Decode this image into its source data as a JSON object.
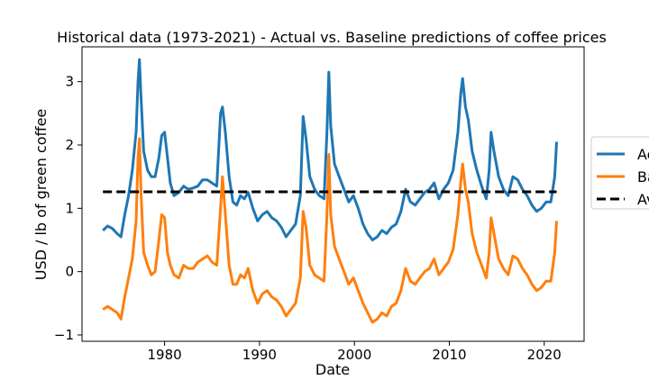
{
  "chart_data": {
    "type": "line",
    "title": "Historical data (1973-2021) - Actual vs. Baseline predictions of coffee prices",
    "xlabel": "Date",
    "ylabel": "USD / lb of green coffee",
    "xlim": [
      1971.3,
      2024.2
    ],
    "ylim": [
      -1.1,
      3.55
    ],
    "xticks": [
      1980,
      1990,
      2000,
      2010,
      2020
    ],
    "yticks": [
      -1,
      0,
      1,
      2,
      3
    ],
    "legend_position": "center-right (outside axes, clipped)",
    "grid": false,
    "series": [
      {
        "name": "Ac",
        "color": "#1f77b4",
        "points": [
          [
            1973.5,
            0.65
          ],
          [
            1974.0,
            0.72
          ],
          [
            1974.5,
            0.68
          ],
          [
            1975.0,
            0.6
          ],
          [
            1975.4,
            0.55
          ],
          [
            1975.8,
            0.9
          ],
          [
            1976.2,
            1.2
          ],
          [
            1976.6,
            1.6
          ],
          [
            1977.0,
            2.2
          ],
          [
            1977.2,
            3.0
          ],
          [
            1977.35,
            3.35
          ],
          [
            1977.5,
            2.8
          ],
          [
            1977.8,
            1.9
          ],
          [
            1978.2,
            1.6
          ],
          [
            1978.6,
            1.5
          ],
          [
            1979.0,
            1.5
          ],
          [
            1979.4,
            1.8
          ],
          [
            1979.7,
            2.15
          ],
          [
            1980.0,
            2.2
          ],
          [
            1980.3,
            1.8
          ],
          [
            1980.6,
            1.4
          ],
          [
            1981.0,
            1.2
          ],
          [
            1981.5,
            1.25
          ],
          [
            1982.0,
            1.35
          ],
          [
            1982.5,
            1.3
          ],
          [
            1983.0,
            1.32
          ],
          [
            1983.5,
            1.35
          ],
          [
            1984.0,
            1.45
          ],
          [
            1984.5,
            1.45
          ],
          [
            1985.0,
            1.4
          ],
          [
            1985.5,
            1.35
          ],
          [
            1985.9,
            2.5
          ],
          [
            1986.1,
            2.6
          ],
          [
            1986.4,
            2.2
          ],
          [
            1986.8,
            1.5
          ],
          [
            1987.2,
            1.1
          ],
          [
            1987.6,
            1.05
          ],
          [
            1988.0,
            1.2
          ],
          [
            1988.4,
            1.15
          ],
          [
            1988.8,
            1.25
          ],
          [
            1989.3,
            1.0
          ],
          [
            1989.8,
            0.8
          ],
          [
            1990.3,
            0.9
          ],
          [
            1990.8,
            0.95
          ],
          [
            1991.3,
            0.85
          ],
          [
            1991.8,
            0.8
          ],
          [
            1992.3,
            0.7
          ],
          [
            1992.8,
            0.55
          ],
          [
            1993.3,
            0.65
          ],
          [
            1993.8,
            0.75
          ],
          [
            1994.3,
            1.2
          ],
          [
            1994.6,
            2.45
          ],
          [
            1994.9,
            2.1
          ],
          [
            1995.3,
            1.5
          ],
          [
            1995.8,
            1.3
          ],
          [
            1996.3,
            1.2
          ],
          [
            1996.8,
            1.15
          ],
          [
            1997.1,
            2.2
          ],
          [
            1997.3,
            3.15
          ],
          [
            1997.5,
            2.3
          ],
          [
            1997.9,
            1.7
          ],
          [
            1998.4,
            1.5
          ],
          [
            1998.9,
            1.3
          ],
          [
            1999.4,
            1.1
          ],
          [
            1999.9,
            1.2
          ],
          [
            2000.4,
            1.0
          ],
          [
            2000.9,
            0.75
          ],
          [
            2001.4,
            0.6
          ],
          [
            2001.9,
            0.5
          ],
          [
            2002.4,
            0.55
          ],
          [
            2002.9,
            0.65
          ],
          [
            2003.4,
            0.6
          ],
          [
            2003.9,
            0.7
          ],
          [
            2004.4,
            0.75
          ],
          [
            2004.9,
            0.95
          ],
          [
            2005.4,
            1.3
          ],
          [
            2005.9,
            1.1
          ],
          [
            2006.4,
            1.05
          ],
          [
            2006.9,
            1.15
          ],
          [
            2007.4,
            1.25
          ],
          [
            2007.9,
            1.3
          ],
          [
            2008.4,
            1.4
          ],
          [
            2008.9,
            1.15
          ],
          [
            2009.4,
            1.3
          ],
          [
            2009.9,
            1.4
          ],
          [
            2010.4,
            1.6
          ],
          [
            2010.9,
            2.2
          ],
          [
            2011.2,
            2.8
          ],
          [
            2011.4,
            3.05
          ],
          [
            2011.7,
            2.6
          ],
          [
            2012.0,
            2.4
          ],
          [
            2012.4,
            1.9
          ],
          [
            2012.9,
            1.6
          ],
          [
            2013.4,
            1.35
          ],
          [
            2013.9,
            1.15
          ],
          [
            2014.2,
            1.6
          ],
          [
            2014.4,
            2.2
          ],
          [
            2014.7,
            1.9
          ],
          [
            2015.2,
            1.5
          ],
          [
            2015.7,
            1.3
          ],
          [
            2016.2,
            1.2
          ],
          [
            2016.7,
            1.5
          ],
          [
            2017.2,
            1.45
          ],
          [
            2017.7,
            1.3
          ],
          [
            2018.2,
            1.2
          ],
          [
            2018.7,
            1.05
          ],
          [
            2019.2,
            0.95
          ],
          [
            2019.7,
            1.0
          ],
          [
            2020.2,
            1.1
          ],
          [
            2020.7,
            1.1
          ],
          [
            2021.1,
            1.5
          ],
          [
            2021.3,
            2.05
          ]
        ]
      },
      {
        "name": "Ba",
        "color": "#ff7f0e",
        "points": [
          [
            1973.5,
            -0.6
          ],
          [
            1974.0,
            -0.55
          ],
          [
            1974.5,
            -0.6
          ],
          [
            1975.0,
            -0.65
          ],
          [
            1975.4,
            -0.75
          ],
          [
            1975.8,
            -0.4
          ],
          [
            1976.2,
            -0.1
          ],
          [
            1976.6,
            0.2
          ],
          [
            1977.0,
            0.8
          ],
          [
            1977.2,
            1.8
          ],
          [
            1977.35,
            2.1
          ],
          [
            1977.5,
            1.3
          ],
          [
            1977.8,
            0.3
          ],
          [
            1978.2,
            0.1
          ],
          [
            1978.6,
            -0.05
          ],
          [
            1979.0,
            0.0
          ],
          [
            1979.4,
            0.5
          ],
          [
            1979.7,
            0.9
          ],
          [
            1980.0,
            0.85
          ],
          [
            1980.3,
            0.3
          ],
          [
            1980.6,
            0.1
          ],
          [
            1981.0,
            -0.05
          ],
          [
            1981.5,
            -0.1
          ],
          [
            1982.0,
            0.1
          ],
          [
            1982.5,
            0.05
          ],
          [
            1983.0,
            0.05
          ],
          [
            1983.5,
            0.15
          ],
          [
            1984.0,
            0.2
          ],
          [
            1984.5,
            0.25
          ],
          [
            1985.0,
            0.15
          ],
          [
            1985.5,
            0.1
          ],
          [
            1985.9,
            1.0
          ],
          [
            1986.1,
            1.5
          ],
          [
            1986.4,
            0.9
          ],
          [
            1986.8,
            0.1
          ],
          [
            1987.2,
            -0.2
          ],
          [
            1987.6,
            -0.2
          ],
          [
            1988.0,
            -0.05
          ],
          [
            1988.4,
            -0.1
          ],
          [
            1988.8,
            0.05
          ],
          [
            1989.3,
            -0.3
          ],
          [
            1989.8,
            -0.5
          ],
          [
            1990.3,
            -0.35
          ],
          [
            1990.8,
            -0.3
          ],
          [
            1991.3,
            -0.4
          ],
          [
            1991.8,
            -0.45
          ],
          [
            1992.3,
            -0.55
          ],
          [
            1992.8,
            -0.7
          ],
          [
            1993.3,
            -0.6
          ],
          [
            1993.8,
            -0.5
          ],
          [
            1994.3,
            -0.1
          ],
          [
            1994.6,
            0.95
          ],
          [
            1994.9,
            0.7
          ],
          [
            1995.3,
            0.1
          ],
          [
            1995.8,
            -0.05
          ],
          [
            1996.3,
            -0.1
          ],
          [
            1996.8,
            -0.15
          ],
          [
            1997.1,
            0.9
          ],
          [
            1997.3,
            1.85
          ],
          [
            1997.5,
            0.9
          ],
          [
            1997.9,
            0.4
          ],
          [
            1998.4,
            0.2
          ],
          [
            1998.9,
            0.0
          ],
          [
            1999.4,
            -0.2
          ],
          [
            1999.9,
            -0.1
          ],
          [
            2000.4,
            -0.3
          ],
          [
            2000.9,
            -0.5
          ],
          [
            2001.4,
            -0.65
          ],
          [
            2001.9,
            -0.8
          ],
          [
            2002.4,
            -0.75
          ],
          [
            2002.9,
            -0.65
          ],
          [
            2003.4,
            -0.7
          ],
          [
            2003.9,
            -0.55
          ],
          [
            2004.4,
            -0.5
          ],
          [
            2004.9,
            -0.3
          ],
          [
            2005.4,
            0.05
          ],
          [
            2005.9,
            -0.15
          ],
          [
            2006.4,
            -0.2
          ],
          [
            2006.9,
            -0.1
          ],
          [
            2007.4,
            0.0
          ],
          [
            2007.9,
            0.05
          ],
          [
            2008.4,
            0.2
          ],
          [
            2008.9,
            -0.05
          ],
          [
            2009.4,
            0.05
          ],
          [
            2009.9,
            0.15
          ],
          [
            2010.4,
            0.35
          ],
          [
            2010.9,
            0.9
          ],
          [
            2011.2,
            1.4
          ],
          [
            2011.4,
            1.7
          ],
          [
            2011.7,
            1.3
          ],
          [
            2012.0,
            1.1
          ],
          [
            2012.4,
            0.6
          ],
          [
            2012.9,
            0.3
          ],
          [
            2013.4,
            0.1
          ],
          [
            2013.9,
            -0.1
          ],
          [
            2014.2,
            0.3
          ],
          [
            2014.4,
            0.85
          ],
          [
            2014.7,
            0.6
          ],
          [
            2015.2,
            0.2
          ],
          [
            2015.7,
            0.05
          ],
          [
            2016.2,
            -0.05
          ],
          [
            2016.7,
            0.25
          ],
          [
            2017.2,
            0.2
          ],
          [
            2017.7,
            0.05
          ],
          [
            2018.2,
            -0.05
          ],
          [
            2018.7,
            -0.2
          ],
          [
            2019.2,
            -0.3
          ],
          [
            2019.7,
            -0.25
          ],
          [
            2020.2,
            -0.15
          ],
          [
            2020.7,
            -0.15
          ],
          [
            2021.1,
            0.3
          ],
          [
            2021.3,
            0.8
          ]
        ]
      },
      {
        "name": "Av",
        "color": "#000000",
        "dashed": true,
        "points": [
          [
            1973.5,
            1.26
          ],
          [
            2021.3,
            1.26
          ]
        ]
      }
    ]
  }
}
